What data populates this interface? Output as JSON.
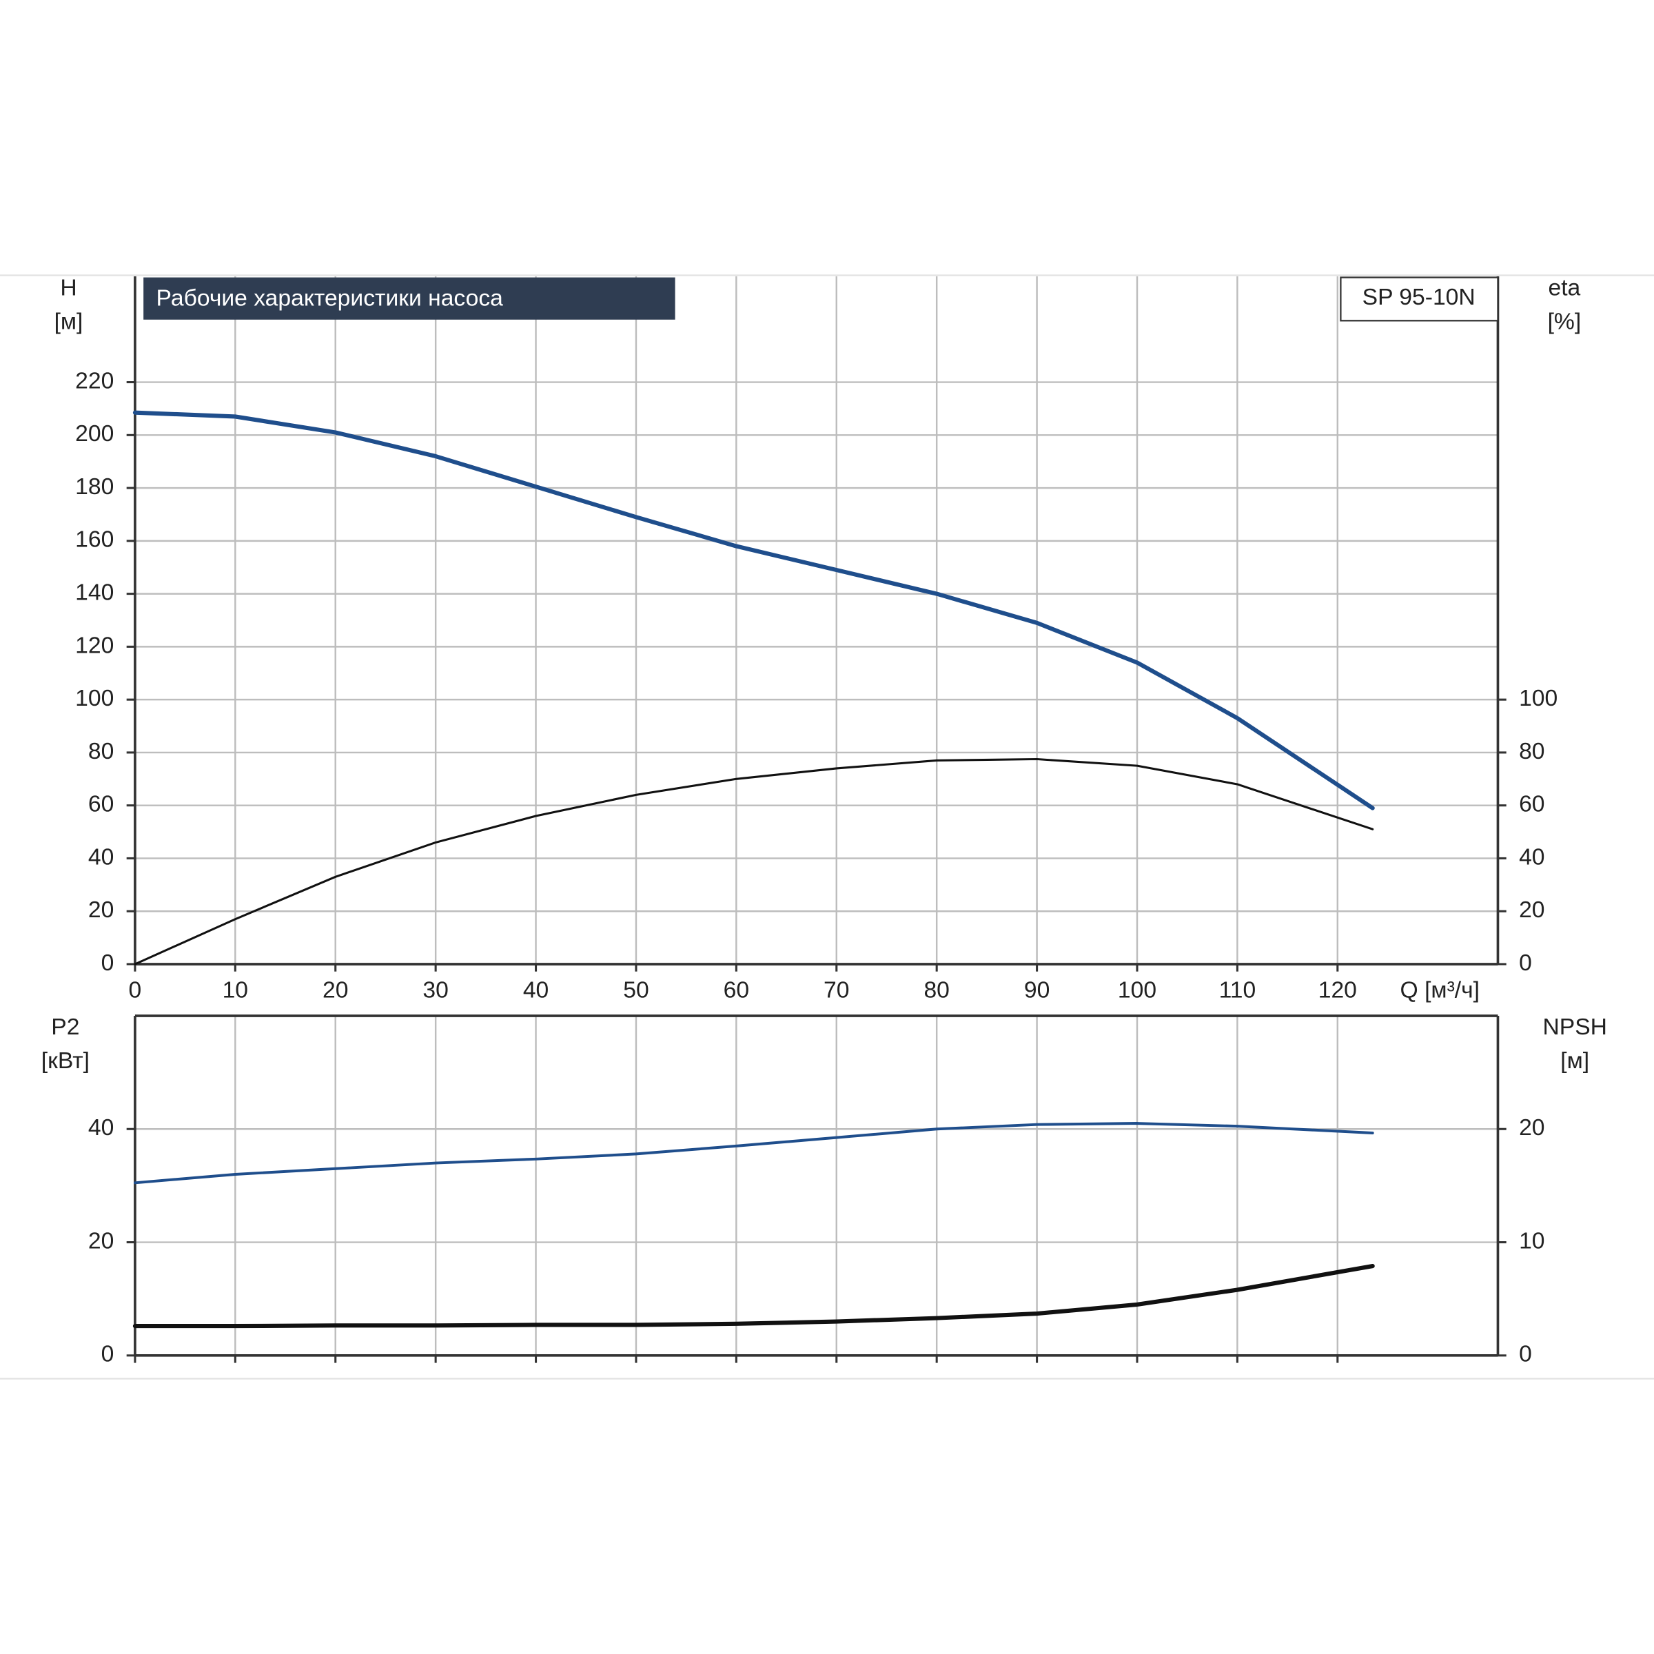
{
  "chart_data": [
    {
      "type": "line",
      "title": "Рабочие характеристики насоса",
      "model": "SP 95-10N",
      "xlabel": "Q [м³/ч]",
      "ylabel": [
        "H",
        "[м]"
      ],
      "y2label": [
        "eta",
        "[%]"
      ],
      "x": [
        0,
        10,
        20,
        30,
        40,
        50,
        60,
        70,
        80,
        90,
        100,
        110,
        123.5
      ],
      "xlim": [
        0,
        136
      ],
      "xticks": [
        0,
        10,
        20,
        30,
        40,
        50,
        60,
        70,
        80,
        90,
        100,
        110,
        120
      ],
      "ylim": [
        0,
        260
      ],
      "yticks": [
        0,
        20,
        40,
        60,
        80,
        100,
        120,
        140,
        160,
        180,
        200,
        220
      ],
      "y2lim": [
        0,
        260
      ],
      "y2ticks": [
        0,
        20,
        40,
        60,
        80,
        100
      ],
      "grid": true,
      "series": [
        {
          "color": "#1f4e8c",
          "width": 4,
          "values": [
            208.5,
            207,
            201,
            192,
            180.5,
            169,
            158,
            149,
            140,
            129,
            114,
            93,
            59
          ]
        },
        {
          "color": "#111111",
          "width": 2,
          "axis": "y2",
          "values": [
            0,
            17,
            33,
            46,
            56,
            64,
            70,
            74,
            77,
            77.5,
            75,
            68,
            51
          ]
        }
      ]
    },
    {
      "type": "line",
      "ylabel": [
        "P2",
        "[кВт]"
      ],
      "y2label": [
        "NPSH",
        "[м]"
      ],
      "x": [
        0,
        10,
        20,
        30,
        40,
        50,
        60,
        70,
        80,
        90,
        100,
        110,
        123.5
      ],
      "xlim": [
        0,
        136
      ],
      "xticks": [
        0,
        10,
        20,
        30,
        40,
        50,
        60,
        70,
        80,
        90,
        100,
        110,
        120
      ],
      "show_xtick_labels": false,
      "ylim": [
        0,
        60
      ],
      "yticks": [
        0,
        20,
        40
      ],
      "y2lim": [
        0,
        30
      ],
      "y2ticks": [
        0,
        10,
        20
      ],
      "grid": true,
      "series": [
        {
          "color": "#1f4e8c",
          "width": 2.6,
          "values": [
            30.5,
            32,
            33,
            34,
            34.7,
            35.6,
            37,
            38.5,
            40,
            40.8,
            41,
            40.5,
            39.3
          ]
        },
        {
          "color": "#111111",
          "width": 4,
          "axis": "y2",
          "values": [
            2.6,
            2.6,
            2.65,
            2.65,
            2.7,
            2.7,
            2.8,
            3.0,
            3.3,
            3.7,
            4.5,
            5.8,
            7.9
          ]
        }
      ]
    }
  ]
}
